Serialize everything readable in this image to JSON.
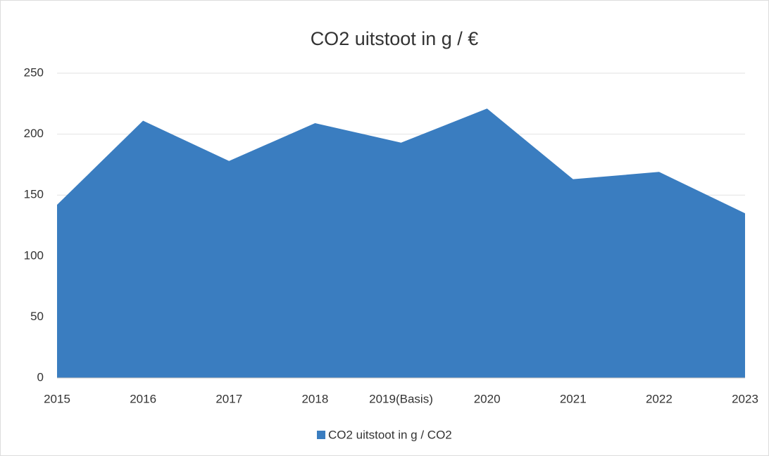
{
  "chart_data": {
    "type": "area",
    "title": "CO2 uitstoot in g / €",
    "categories": [
      "2015",
      "2016",
      "2017",
      "2018",
      "2019(Basis)",
      "2020",
      "2021",
      "2022",
      "2023"
    ],
    "series": [
      {
        "name": "CO2 uitstoot in g / CO2",
        "color": "#3a7dc0",
        "values": [
          142,
          211,
          178,
          209,
          193,
          221,
          163,
          169,
          135
        ]
      }
    ],
    "ylim": [
      0,
      250
    ],
    "yticks": [
      0,
      50,
      100,
      150,
      200,
      250
    ],
    "grid": true,
    "legend": "bottom"
  }
}
